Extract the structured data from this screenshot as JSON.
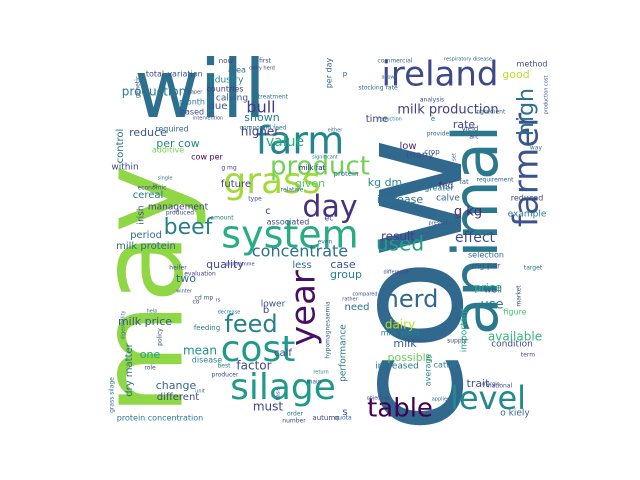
{
  "wordcloud": {
    "words": [
      {
        "text": "cow",
        "color": "#31688e"
      },
      {
        "text": "may",
        "color": "#8fd744"
      },
      {
        "text": "animal",
        "color": "#2a788e"
      },
      {
        "text": "will",
        "color": "#2d708e"
      },
      {
        "text": "farmer",
        "color": "#3b528b"
      },
      {
        "text": "ireland",
        "color": "#3e4989"
      },
      {
        "text": "farm",
        "color": "#25858e"
      },
      {
        "text": "system",
        "color": "#27ad81"
      },
      {
        "text": "silage",
        "color": "#1f9a8a"
      },
      {
        "text": "grass",
        "color": "#a2da37"
      },
      {
        "text": "cost",
        "color": "#1e9b8a"
      },
      {
        "text": "product",
        "color": "#73d056"
      },
      {
        "text": "day",
        "color": "#46327e"
      },
      {
        "text": "level",
        "color": "#23898e"
      },
      {
        "text": "year",
        "color": "#471063"
      },
      {
        "text": "herd",
        "color": "#31688e"
      },
      {
        "text": "table",
        "color": "#440154"
      },
      {
        "text": "feed",
        "color": "#26828e"
      },
      {
        "text": "beef",
        "color": "#277f8e"
      },
      {
        "text": "high",
        "color": "#2c728e"
      },
      {
        "text": "used",
        "color": "#1f9e89"
      },
      {
        "text": "milk production",
        "color": "#424086"
      },
      {
        "text": "concentrate",
        "color": "#2e6f8e"
      },
      {
        "text": "effect",
        "color": "#3e4a89"
      },
      {
        "text": "value",
        "color": "#2cb17e"
      },
      {
        "text": "bull",
        "color": "#443983"
      },
      {
        "text": "result",
        "color": "#433e85"
      },
      {
        "text": "production",
        "color": "#2a768e"
      },
      {
        "text": "reduce",
        "color": "#3b528b"
      },
      {
        "text": "per cow",
        "color": "#24868e"
      },
      {
        "text": "mean",
        "color": "#20928c"
      },
      {
        "text": "factor",
        "color": "#3e4989"
      },
      {
        "text": "must",
        "color": "#404688"
      },
      {
        "text": "use",
        "color": "#2a788e"
      },
      {
        "text": "available",
        "color": "#35b779"
      },
      {
        "text": "milk price",
        "color": "#3b528b"
      },
      {
        "text": "dry matter",
        "color": "#2d708e"
      },
      {
        "text": "one",
        "color": "#1fa088"
      },
      {
        "text": "change",
        "color": "#31688e"
      },
      {
        "text": "dairy",
        "color": "#bddf26"
      },
      {
        "text": "kg dm",
        "color": "#23898e"
      },
      {
        "text": "increase",
        "color": "#2c728e"
      },
      {
        "text": "low",
        "color": "#482878"
      },
      {
        "text": "many",
        "color": "#3b528b"
      },
      {
        "text": "milk",
        "color": "#355f8d"
      },
      {
        "text": "possible",
        "color": "#6ccd5a"
      },
      {
        "text": "condition",
        "color": "#3e4989"
      },
      {
        "text": "price",
        "color": "#29af7f"
      },
      {
        "text": "rate",
        "color": "#3e4a89"
      },
      {
        "text": "time",
        "color": "#414487"
      },
      {
        "text": "g kg",
        "color": "#482878"
      },
      {
        "text": "cereal",
        "color": "#2a788e"
      },
      {
        "text": "case",
        "color": "#3b528b"
      },
      {
        "text": "group",
        "color": "#277f8e"
      },
      {
        "text": "quality",
        "color": "#3e4989"
      },
      {
        "text": "less",
        "color": "#31688e"
      },
      {
        "text": "two",
        "color": "#2f6c8e"
      },
      {
        "text": "given",
        "color": "#58c765"
      },
      {
        "text": "future",
        "color": "#414487"
      },
      {
        "text": "higher",
        "color": "#453781"
      },
      {
        "text": "shown",
        "color": "#26828e"
      },
      {
        "text": "due",
        "color": "#3b528b"
      },
      {
        "text": "period",
        "color": "#2d708e"
      },
      {
        "text": "milk protein",
        "color": "#31688e"
      },
      {
        "text": "irish",
        "color": "#3e4989"
      },
      {
        "text": "control",
        "color": "#2c728e"
      },
      {
        "text": "good",
        "color": "#bddf26"
      },
      {
        "text": "important",
        "color": "#22a785"
      },
      {
        "text": "trait",
        "color": "#3b528b"
      },
      {
        "text": "calf",
        "color": "#3e4989"
      },
      {
        "text": "need",
        "color": "#2d708e"
      },
      {
        "text": "selection",
        "color": "#31688e"
      },
      {
        "text": "example",
        "color": "#2a788e"
      },
      {
        "text": "reduced",
        "color": "#3e4989"
      },
      {
        "text": "fed",
        "color": "#482878"
      },
      {
        "text": "greater",
        "color": "#2a788e"
      },
      {
        "text": "calve",
        "color": "#31688e"
      },
      {
        "text": "cattle",
        "color": "#2a788e"
      },
      {
        "text": "well",
        "color": "#355f8d"
      },
      {
        "text": "lower",
        "color": "#3b528b"
      },
      {
        "text": "different",
        "color": "#3e4989"
      },
      {
        "text": "performance",
        "color": "#2a788e"
      },
      {
        "text": "increased",
        "color": "#2c728e"
      },
      {
        "text": "milk yield",
        "color": "#25858e"
      },
      {
        "text": "management",
        "color": "#414487"
      },
      {
        "text": "required",
        "color": "#31688e"
      },
      {
        "text": "additive",
        "color": "#7ad151"
      },
      {
        "text": "calving",
        "color": "#3b528b"
      },
      {
        "text": "industry",
        "color": "#26828e"
      },
      {
        "text": "total",
        "color": "#414487"
      },
      {
        "text": "variation",
        "color": "#3b528b"
      },
      {
        "text": "month",
        "color": "#2a788e"
      },
      {
        "text": "based",
        "color": "#404688"
      },
      {
        "text": "countries",
        "color": "#443983"
      },
      {
        "text": "area",
        "color": "#2d708e"
      },
      {
        "text": "protein concentration",
        "color": "#2a788e"
      },
      {
        "text": "grass silage",
        "color": "#2c728e"
      },
      {
        "text": "o kiely",
        "color": "#31688e"
      },
      {
        "text": "method",
        "color": "#3e4989"
      },
      {
        "text": "first",
        "color": "#3b528b"
      },
      {
        "text": "commercial",
        "color": "#31688e"
      },
      {
        "text": "treatment",
        "color": "#2a788e"
      },
      {
        "text": "average",
        "color": "#26828e"
      },
      {
        "text": "milk fat",
        "color": "#31688e"
      },
      {
        "text": "compound feed",
        "color": "#2a788e"
      },
      {
        "text": "associated",
        "color": "#3e4989"
      },
      {
        "text": "economic",
        "color": "#3b528b"
      },
      {
        "text": "figure",
        "color": "#4ac16d"
      },
      {
        "text": "target",
        "color": "#2d708e"
      },
      {
        "text": "autumn",
        "color": "#414487"
      },
      {
        "text": "order",
        "color": "#2c728e"
      },
      {
        "text": "number",
        "color": "#3e4989"
      },
      {
        "text": "main",
        "color": "#3b528b"
      },
      {
        "text": "ingredient",
        "color": "#31688e"
      },
      {
        "text": "amount",
        "color": "#2a788e"
      },
      {
        "text": "even",
        "color": "#31688e"
      },
      {
        "text": "cow per",
        "color": "#440154"
      },
      {
        "text": "producer",
        "color": "#3e4989"
      },
      {
        "text": "disease",
        "color": "#26828e"
      },
      {
        "text": "feeding",
        "color": "#2a788e"
      },
      {
        "text": "evaluation",
        "color": "#414487"
      },
      {
        "text": "heifer",
        "color": "#3b528b"
      },
      {
        "text": "quota",
        "color": "#31688e"
      },
      {
        "text": "national",
        "color": "#3e4989"
      },
      {
        "text": "stocking rate",
        "color": "#31688e"
      },
      {
        "text": "dairy herd",
        "color": "#414487"
      },
      {
        "text": "allow",
        "color": "#2a788e"
      },
      {
        "text": "analysis",
        "color": "#3b528b"
      },
      {
        "text": "reduction",
        "color": "#2c728e"
      },
      {
        "text": "respiratory disease",
        "color": "#31688e"
      },
      {
        "text": "significant",
        "color": "#2a788e"
      },
      {
        "text": "intervention",
        "color": "#3e4989"
      },
      {
        "text": "paper",
        "color": "#414487"
      },
      {
        "text": "genetic",
        "color": "#3b528b"
      },
      {
        "text": "relative",
        "color": "#31688e"
      },
      {
        "text": "produced",
        "color": "#414487"
      },
      {
        "text": "type",
        "color": "#3b528b"
      },
      {
        "text": "single",
        "color": "#31688e"
      },
      {
        "text": "digestibility",
        "color": "#2a788e"
      },
      {
        "text": "within",
        "color": "#3e4989"
      },
      {
        "text": "role",
        "color": "#414487"
      },
      {
        "text": "winter",
        "color": "#3b528b"
      },
      {
        "text": "help",
        "color": "#31688e"
      },
      {
        "text": "decrease",
        "color": "#2a788e"
      },
      {
        "text": "compared",
        "color": "#3e4989"
      },
      {
        "text": "rather",
        "color": "#414487"
      },
      {
        "text": "crop",
        "color": "#3b528b"
      },
      {
        "text": "provide",
        "color": "#31688e"
      },
      {
        "text": "decline",
        "color": "#2a788e"
      },
      {
        "text": "present",
        "color": "#3e4989"
      },
      {
        "text": "margin",
        "color": "#414487"
      },
      {
        "text": "term",
        "color": "#3b528b"
      },
      {
        "text": "applied",
        "color": "#31688e"
      },
      {
        "text": "return",
        "color": "#2a788e"
      },
      {
        "text": "objective",
        "color": "#3e4989"
      },
      {
        "text": "difference",
        "color": "#414487"
      },
      {
        "text": "mg per",
        "color": "#3b528b"
      },
      {
        "text": "requirement",
        "color": "#31688e"
      },
      {
        "text": "way",
        "color": "#2a788e"
      },
      {
        "text": "market",
        "color": "#3e4989"
      },
      {
        "text": "supply",
        "color": "#414487"
      },
      {
        "text": "pasture",
        "color": "#3b528b"
      },
      {
        "text": "hypomagnesaemia",
        "color": "#31688e"
      },
      {
        "text": "policy",
        "color": "#3e4989"
      },
      {
        "text": "programme",
        "color": "#414487"
      },
      {
        "text": "basis",
        "color": "#3b528b"
      },
      {
        "text": "unit",
        "color": "#31688e"
      },
      {
        "text": "best",
        "color": "#2a788e"
      },
      {
        "text": "ie",
        "color": "#3e4989"
      },
      {
        "text": "rs",
        "color": "#414487"
      },
      {
        "text": "ec",
        "color": "#3b528b"
      },
      {
        "text": "fat",
        "color": "#31688e"
      },
      {
        "text": "yield",
        "color": "#3e4989"
      },
      {
        "text": "arc",
        "color": "#414487"
      },
      {
        "text": "set",
        "color": "#3b528b"
      },
      {
        "text": "stage",
        "color": "#31688e"
      },
      {
        "text": "protein",
        "color": "#2a788e"
      },
      {
        "text": "co",
        "color": "#3e4989"
      },
      {
        "text": "g mg",
        "color": "#414487"
      },
      {
        "text": "cd mp",
        "color": "#3b528b"
      },
      {
        "text": "per day",
        "color": "#31688e"
      },
      {
        "text": "c",
        "color": "#3e4989"
      },
      {
        "text": "b",
        "color": "#414487"
      },
      {
        "text": "s",
        "color": "#3b528b"
      },
      {
        "text": "p",
        "color": "#31688e"
      },
      {
        "text": "e",
        "color": "#2a788e"
      },
      {
        "text": "production cost",
        "color": "#3e4989"
      },
      {
        "text": "now",
        "color": "#414487"
      },
      {
        "text": "milk fat",
        "color": "#3b528b"
      },
      {
        "text": "either",
        "color": "#31688e"
      }
    ]
  }
}
